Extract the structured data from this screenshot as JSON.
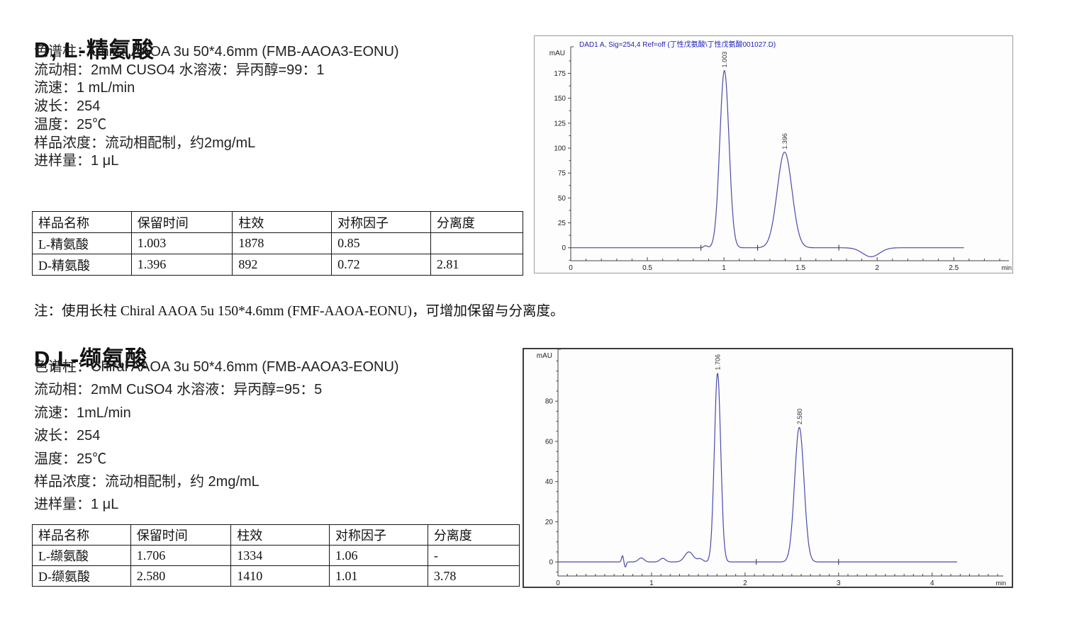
{
  "sections": [
    {
      "title": "D, L-精氨酸",
      "params": [
        "色谱柱：Chiral AAOA 3u 50*4.6mm (FMB-AAOA3-EONU)",
        "流动相：2mM CUSO4 水溶液：异丙醇=99：1",
        "流速：1 mL/min",
        "波长：254",
        "温度：25℃",
        "样品浓度：流动相配制，约2mg/mL",
        "进样量：1 μL"
      ],
      "table": {
        "headers": [
          "样品名称",
          "保留时间",
          "柱效",
          "对称因子",
          "分离度"
        ],
        "rows": [
          [
            "L-精氨酸",
            "1.003",
            "1878",
            "0.85",
            ""
          ],
          [
            "D-精氨酸",
            "1.396",
            "892",
            "0.72",
            "2.81"
          ]
        ]
      },
      "note": "注：使用长柱 Chiral AAOA 5u 150*4.6mm (FMF-AAOA-EONU)，可增加保留与分离度。"
    },
    {
      "title": "D,L-缬氨酸",
      "params": [
        "色谱柱：Chiral AAOA 3u 50*4.6mm (FMB-AAOA3-EONU)",
        "流动相：2mM CuSO4 水溶液：异丙醇=95：5",
        "流速：1mL/min",
        "波长：254",
        "温度：25℃",
        "样品浓度：流动相配制，约 2mg/mL",
        "进样量：1 μL"
      ],
      "table": {
        "headers": [
          "样品名称",
          "保留时间",
          "柱效",
          "对称因子",
          "分离度"
        ],
        "rows": [
          [
            "L-缬氨酸",
            "1.706",
            "1334",
            "1.06",
            "-"
          ],
          [
            "D-缬氨酸",
            "2.580",
            "1410",
            "1.01",
            "3.78"
          ]
        ]
      },
      "note": ""
    }
  ],
  "chart_data": [
    {
      "type": "line",
      "title": "DAD1 A, Sig=254,4 Ref=off (丁性戊氨酸\\丁性戊氨酸001027.D)",
      "ylabel": "mAU",
      "xlabel": "min",
      "xlim": [
        0,
        2.86
      ],
      "ylim": [
        -13,
        196
      ],
      "yticks": [
        0,
        25,
        50,
        75,
        100,
        125,
        150,
        175
      ],
      "y_minor_step": 12.5,
      "xticks": [
        0,
        0.5,
        1,
        1.5,
        2,
        2.5
      ],
      "xtick_labels": [
        "0",
        "0.5",
        "1",
        "1.5",
        "2",
        "2.5"
      ],
      "x_minor_step": 0.1,
      "trace_end": 2.57,
      "grid": false,
      "line_color": "#4a4aad",
      "title_color": "#2222bd",
      "frame_color": "#9a9a9a",
      "peaks": [
        {
          "rt": 0.88,
          "height": 2,
          "sigma": 0.012,
          "label": ""
        },
        {
          "rt": 1.003,
          "height": 178,
          "sigma": 0.03,
          "label": "1.003"
        },
        {
          "rt": 1.396,
          "height": 96,
          "sigma": 0.048,
          "label": "1.396"
        },
        {
          "rt": 1.96,
          "height": -9,
          "sigma": 0.055,
          "label": ""
        }
      ],
      "baseline_marks": [
        0.85,
        1.22,
        1.75
      ]
    },
    {
      "type": "line",
      "title": "",
      "ylabel": "mAU",
      "xlabel": "min",
      "xlim": [
        0,
        4.76
      ],
      "ylim": [
        -7,
        103
      ],
      "yticks": [
        0,
        20,
        40,
        60,
        80
      ],
      "y_minor_step": 5,
      "xticks": [
        0,
        1,
        2,
        3,
        4
      ],
      "xtick_labels": [
        "0",
        "1",
        "2",
        "3",
        "4"
      ],
      "x_minor_step": 0.1,
      "trace_end": 4.27,
      "grid": false,
      "line_color": "#4a4aad",
      "title_color": "#2222bd",
      "frame_color": "#3d3d3d",
      "peaks": [
        {
          "rt": 0.69,
          "height": 3.2,
          "sigma": 0.01,
          "label": ""
        },
        {
          "rt": 0.72,
          "height": -2.6,
          "sigma": 0.01,
          "label": ""
        },
        {
          "rt": 0.89,
          "height": 2.0,
          "sigma": 0.03,
          "label": ""
        },
        {
          "rt": 1.12,
          "height": 1.8,
          "sigma": 0.03,
          "label": ""
        },
        {
          "rt": 1.4,
          "height": 5.0,
          "sigma": 0.045,
          "label": ""
        },
        {
          "rt": 1.52,
          "height": 1.5,
          "sigma": 0.03,
          "label": ""
        },
        {
          "rt": 1.706,
          "height": 94,
          "sigma": 0.034,
          "label": "1.706"
        },
        {
          "rt": 2.58,
          "height": 67,
          "sigma": 0.05,
          "label": "2.580"
        }
      ],
      "baseline_marks": [
        2.12,
        3.0
      ]
    }
  ]
}
